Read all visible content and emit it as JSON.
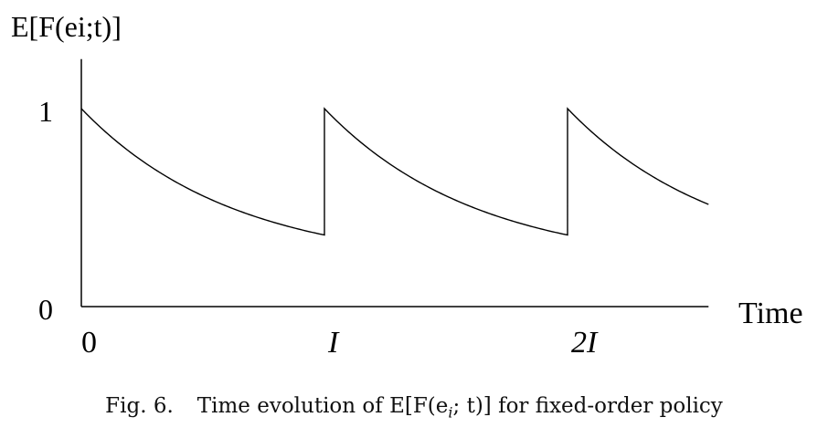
{
  "chart_data": {
    "type": "line",
    "ylabel": "E[F(ei;t)]",
    "xlabel": "Time",
    "yticks": [
      {
        "value": 0,
        "label": "0"
      },
      {
        "value": 1,
        "label": "1"
      }
    ],
    "xticks": [
      {
        "value": 0,
        "label": "0",
        "italic": false
      },
      {
        "value": 1,
        "label": "I",
        "italic": true
      },
      {
        "value": 2,
        "label": "2I",
        "italic": true
      }
    ],
    "xlim": [
      0,
      2.58
    ],
    "ylim": [
      0,
      1.25
    ],
    "series": [
      {
        "description_free": true,
        "decay_floor": 0.2,
        "cycle_period": 1,
        "x": [
          0,
          0.1,
          0.2,
          0.3,
          0.4,
          0.5,
          0.6,
          0.7,
          0.8,
          0.9,
          1.0,
          1.0,
          1.1,
          1.2,
          1.3,
          1.4,
          1.5,
          1.6,
          1.7,
          1.8,
          1.9,
          2.0,
          2.0,
          2.1,
          2.2,
          2.3,
          2.4,
          2.5,
          2.58
        ],
        "y": [
          1.0,
          0.86,
          0.74,
          0.64,
          0.56,
          0.49,
          0.43,
          0.39,
          0.35,
          0.32,
          0.3,
          1.0,
          0.86,
          0.74,
          0.64,
          0.56,
          0.49,
          0.43,
          0.39,
          0.35,
          0.32,
          0.3,
          1.0,
          0.86,
          0.74,
          0.64,
          0.56,
          0.49,
          0.44
        ]
      }
    ],
    "grid": false,
    "legend": "none"
  },
  "caption": {
    "label": "Fig. 6.",
    "text": "Time evolution of E[F(e",
    "subscript": "i",
    "text_after": "; t)] for fixed-order policy"
  }
}
